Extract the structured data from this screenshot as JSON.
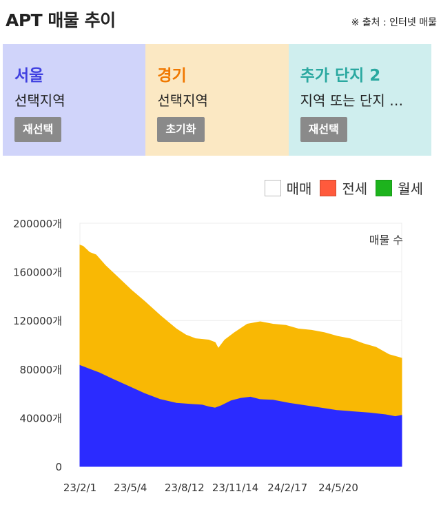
{
  "header": {
    "title": "APT 매물 추이",
    "source": "※ 출처 : 인터넷 매물"
  },
  "regions": [
    {
      "name": "서울",
      "name_color": "#4040e0",
      "subtitle": "선택지역",
      "button": "재선택",
      "bg": "#d0d4fa"
    },
    {
      "name": "경기",
      "name_color": "#f07800",
      "subtitle": "선택지역",
      "button": "초기화",
      "bg": "#fbe8c3"
    },
    {
      "name": "추가 단지 2",
      "name_color": "#2aa8a0",
      "subtitle": "지역 또는 단지 …",
      "button": "재선택",
      "bg": "#cfeeee"
    }
  ],
  "legend": [
    {
      "label": "매매",
      "color": "#ffffff",
      "border": "#bbbbbb"
    },
    {
      "label": "전세",
      "color": "#ff5a3c",
      "border": "#cc4a30"
    },
    {
      "label": "월세",
      "color": "#1db31d",
      "border": "#189a18"
    }
  ],
  "chart_data": {
    "type": "area",
    "stacked": true,
    "annotation": "매물 수",
    "y_ticks": [
      "200000개",
      "160000개",
      "120000개",
      "80000개",
      "40000개",
      "0"
    ],
    "ylim": [
      0,
      200000
    ],
    "x_ticks": [
      "23/2/1",
      "23/5/4",
      "23/8/12",
      "23/11/14",
      "24/2/17",
      "24/5/20"
    ],
    "x_index_range": [
      0,
      100
    ],
    "x_tick_positions": [
      0,
      15.7,
      32.5,
      48.3,
      64.5,
      80.3
    ],
    "grid": true,
    "series": [
      {
        "color": "#2b2bff",
        "points": [
          [
            0,
            83000
          ],
          [
            1,
            82000
          ],
          [
            3,
            80000
          ],
          [
            6,
            77000
          ],
          [
            10,
            72000
          ],
          [
            15,
            66000
          ],
          [
            20,
            60000
          ],
          [
            25,
            55000
          ],
          [
            30,
            52000
          ],
          [
            35,
            51000
          ],
          [
            38,
            50500
          ],
          [
            40,
            49000
          ],
          [
            42,
            48000
          ],
          [
            44,
            50000
          ],
          [
            47,
            54000
          ],
          [
            50,
            56000
          ],
          [
            53,
            57000
          ],
          [
            56,
            55000
          ],
          [
            60,
            54500
          ],
          [
            65,
            52000
          ],
          [
            70,
            50000
          ],
          [
            75,
            48000
          ],
          [
            80,
            46000
          ],
          [
            85,
            45000
          ],
          [
            90,
            44000
          ],
          [
            95,
            42500
          ],
          [
            98,
            41000
          ],
          [
            100,
            42000
          ]
        ]
      },
      {
        "color": "#f9b804",
        "points": [
          [
            0,
            182000
          ],
          [
            1,
            181000
          ],
          [
            3,
            176000
          ],
          [
            5,
            174000
          ],
          [
            8,
            165000
          ],
          [
            12,
            155000
          ],
          [
            16,
            145000
          ],
          [
            20,
            136000
          ],
          [
            25,
            124000
          ],
          [
            30,
            113000
          ],
          [
            33,
            108000
          ],
          [
            36,
            105000
          ],
          [
            40,
            104000
          ],
          [
            42,
            102000
          ],
          [
            43,
            97000
          ],
          [
            45,
            104000
          ],
          [
            48,
            110000
          ],
          [
            52,
            117000
          ],
          [
            56,
            119000
          ],
          [
            60,
            117000
          ],
          [
            64,
            116000
          ],
          [
            68,
            113000
          ],
          [
            72,
            112000
          ],
          [
            76,
            110000
          ],
          [
            80,
            107000
          ],
          [
            84,
            105000
          ],
          [
            88,
            101000
          ],
          [
            92,
            98000
          ],
          [
            96,
            92000
          ],
          [
            100,
            89000
          ]
        ]
      }
    ]
  }
}
